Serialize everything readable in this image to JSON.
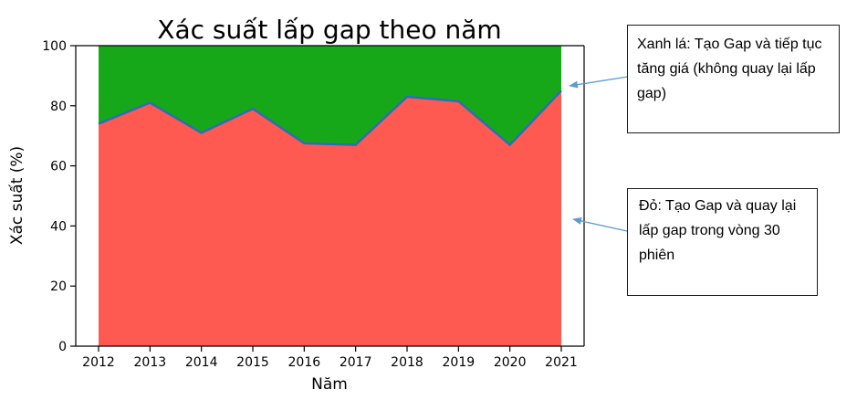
{
  "chart_data": {
    "type": "area",
    "title": "Xác suất lấp gap theo năm",
    "xlabel": "Năm",
    "ylabel": "Xác suất (%)",
    "x": [
      2012,
      2013,
      2014,
      2015,
      2016,
      2017,
      2018,
      2019,
      2020,
      2021
    ],
    "ylim": [
      0,
      100
    ],
    "yticks": [
      0,
      20,
      40,
      60,
      80,
      100
    ],
    "stacked": true,
    "grid": false,
    "legend": "none",
    "series": [
      {
        "color": "#FF5A52",
        "values": [
          74,
          81,
          71,
          79,
          67.5,
          67,
          83,
          81.5,
          67,
          85
        ]
      },
      {
        "color": "#17A81A",
        "values": [
          26,
          19,
          29,
          21,
          32.5,
          33,
          17,
          18.5,
          33,
          15
        ]
      }
    ],
    "boundary_line_color": "#2A6FB5"
  },
  "annotations": {
    "green_note": "Xanh lá: Tạo Gap và tiếp tục tăng giá (không quay lại lấp gap)",
    "red_note": "Đỏ: Tạo Gap và quay lại lấp gap trong vòng 30 phiên"
  },
  "colors": {
    "arrow": "#5B9BD5",
    "axis": "#000000"
  }
}
